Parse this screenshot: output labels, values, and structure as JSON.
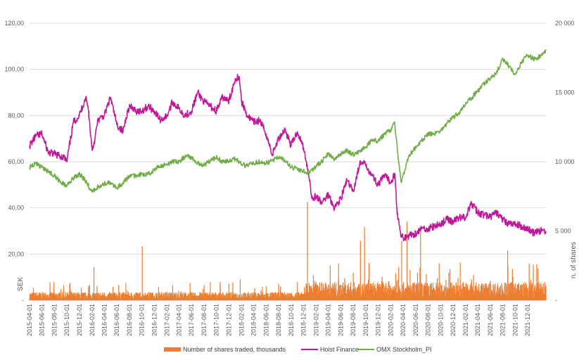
{
  "chart_data": {
    "type": "line",
    "title": "",
    "x_range": [
      "2015-04-01",
      "2022-02-28"
    ],
    "x_ticks": [
      "2015-04-01",
      "2015-06-01",
      "2015-08-01",
      "2015-10-01",
      "2015-12-01",
      "2016-02-01",
      "2016-04-01",
      "2016-06-01",
      "2016-08-01",
      "2016-10-01",
      "2016-12-01",
      "2017-02-01",
      "2017-04-01",
      "2017-06-01",
      "2017-08-01",
      "2017-10-01",
      "2017-12-01",
      "2018-02-01",
      "2018-04-01",
      "2018-06-01",
      "2018-08-01",
      "2018-10-01",
      "2018-12-01",
      "2019-02-01",
      "2019-04-01",
      "2019-06-01",
      "2019-08-01",
      "2019-10-01",
      "2019-12-01",
      "2020-02-01",
      "2020-04-01",
      "2020-06-01",
      "2020-08-01",
      "2020-10-01",
      "2020-12-01",
      "2021-02-01",
      "2021-04-01",
      "2021-06-01",
      "2021-08-01",
      "2021-10-01",
      "2021-12-01"
    ],
    "y_left": {
      "label": "SEK",
      "range": [
        0,
        120
      ],
      "ticks": [
        "-",
        "20,00",
        "40,00",
        "60,00",
        "80,00",
        "100,00",
        "120,00"
      ]
    },
    "y_right": {
      "label": "n. of shares",
      "range": [
        0,
        20000
      ],
      "ticks": [
        "-",
        "5 000",
        "10 000",
        "15 000",
        "20 000"
      ]
    },
    "gridlines": true,
    "legend": {
      "position": "bottom",
      "items": [
        {
          "name": "Number of shares traded, thousands",
          "color": "#ED7D31",
          "kind": "bar"
        },
        {
          "name": "Hoist Finance",
          "color": "#C0189A",
          "kind": "line"
        },
        {
          "name": "OMX Stockholm_PI",
          "color": "#70AD47",
          "kind": "line"
        }
      ]
    },
    "series": [
      {
        "name": "Hoist Finance",
        "axis": "left",
        "color": "#C0189A",
        "points": [
          [
            "2015-04-01",
            67
          ],
          [
            "2015-05-01",
            71
          ],
          [
            "2015-06-01",
            72
          ],
          [
            "2015-07-01",
            64
          ],
          [
            "2015-08-15",
            63
          ],
          [
            "2015-09-15",
            62
          ],
          [
            "2015-10-01",
            60
          ],
          [
            "2015-11-01",
            77
          ],
          [
            "2015-12-01",
            80
          ],
          [
            "2016-01-01",
            88
          ],
          [
            "2016-01-15",
            82
          ],
          [
            "2016-02-01",
            65
          ],
          [
            "2016-02-15",
            70
          ],
          [
            "2016-03-01",
            78
          ],
          [
            "2016-04-01",
            80
          ],
          [
            "2016-05-01",
            88
          ],
          [
            "2016-06-01",
            76
          ],
          [
            "2016-07-01",
            73
          ],
          [
            "2016-07-15",
            79
          ],
          [
            "2016-08-01",
            84
          ],
          [
            "2016-09-01",
            82
          ],
          [
            "2016-10-01",
            82
          ],
          [
            "2016-11-01",
            84
          ],
          [
            "2016-12-01",
            82
          ],
          [
            "2017-01-01",
            78
          ],
          [
            "2017-02-01",
            80
          ],
          [
            "2017-03-01",
            86
          ],
          [
            "2017-04-01",
            83
          ],
          [
            "2017-05-01",
            80
          ],
          [
            "2017-06-01",
            82
          ],
          [
            "2017-07-01",
            90
          ],
          [
            "2017-08-01",
            86
          ],
          [
            "2017-09-01",
            84
          ],
          [
            "2017-10-01",
            82
          ],
          [
            "2017-11-01",
            88
          ],
          [
            "2017-12-01",
            86
          ],
          [
            "2018-01-01",
            96
          ],
          [
            "2018-01-20",
            97
          ],
          [
            "2018-02-01",
            86
          ],
          [
            "2018-03-01",
            80
          ],
          [
            "2018-04-01",
            77
          ],
          [
            "2018-05-01",
            78
          ],
          [
            "2018-06-01",
            72
          ],
          [
            "2018-07-01",
            63
          ],
          [
            "2018-08-01",
            70
          ],
          [
            "2018-09-01",
            74
          ],
          [
            "2018-10-01",
            67
          ],
          [
            "2018-11-01",
            73
          ],
          [
            "2018-12-01",
            66
          ],
          [
            "2018-12-15",
            60
          ],
          [
            "2019-01-01",
            52
          ],
          [
            "2019-01-10",
            44
          ],
          [
            "2019-02-01",
            45
          ],
          [
            "2019-03-01",
            42
          ],
          [
            "2019-04-01",
            46
          ],
          [
            "2019-05-01",
            40
          ],
          [
            "2019-06-01",
            44
          ],
          [
            "2019-07-01",
            52
          ],
          [
            "2019-08-01",
            47
          ],
          [
            "2019-09-01",
            59
          ],
          [
            "2019-10-01",
            59
          ],
          [
            "2019-11-01",
            54
          ],
          [
            "2019-12-01",
            50
          ],
          [
            "2020-01-01",
            54
          ],
          [
            "2020-02-01",
            51
          ],
          [
            "2020-02-20",
            55
          ],
          [
            "2020-03-01",
            40
          ],
          [
            "2020-03-20",
            28
          ],
          [
            "2020-04-01",
            27
          ],
          [
            "2020-05-01",
            28
          ],
          [
            "2020-06-01",
            29
          ],
          [
            "2020-07-01",
            31
          ],
          [
            "2020-08-01",
            31
          ],
          [
            "2020-09-01",
            32
          ],
          [
            "2020-10-01",
            33
          ],
          [
            "2020-11-01",
            35
          ],
          [
            "2020-12-01",
            34
          ],
          [
            "2021-01-01",
            36
          ],
          [
            "2021-02-01",
            36
          ],
          [
            "2021-03-01",
            42
          ],
          [
            "2021-04-01",
            38
          ],
          [
            "2021-05-01",
            37
          ],
          [
            "2021-06-01",
            36
          ],
          [
            "2021-07-01",
            38
          ],
          [
            "2021-08-01",
            35
          ],
          [
            "2021-09-01",
            33
          ],
          [
            "2021-10-01",
            33
          ],
          [
            "2021-11-01",
            32
          ],
          [
            "2021-12-01",
            31
          ],
          [
            "2022-01-01",
            29
          ],
          [
            "2022-02-01",
            30
          ],
          [
            "2022-02-28",
            30
          ]
        ]
      },
      {
        "name": "OMX Stockholm_PI",
        "axis": "right",
        "color": "#70AD47",
        "points": [
          [
            "2015-04-01",
            9600
          ],
          [
            "2015-05-01",
            9900
          ],
          [
            "2015-06-01",
            9600
          ],
          [
            "2015-07-01",
            9300
          ],
          [
            "2015-08-01",
            9000
          ],
          [
            "2015-09-01",
            8500
          ],
          [
            "2015-10-01",
            8300
          ],
          [
            "2015-11-01",
            8800
          ],
          [
            "2015-12-01",
            9100
          ],
          [
            "2016-01-01",
            8600
          ],
          [
            "2016-02-01",
            7800
          ],
          [
            "2016-03-01",
            8200
          ],
          [
            "2016-04-01",
            8400
          ],
          [
            "2016-05-01",
            8500
          ],
          [
            "2016-06-01",
            8100
          ],
          [
            "2016-07-01",
            8500
          ],
          [
            "2016-08-01",
            8900
          ],
          [
            "2016-09-01",
            9000
          ],
          [
            "2016-10-01",
            9100
          ],
          [
            "2016-11-01",
            9100
          ],
          [
            "2016-12-01",
            9400
          ],
          [
            "2017-01-01",
            9700
          ],
          [
            "2017-02-01",
            9800
          ],
          [
            "2017-03-01",
            10000
          ],
          [
            "2017-04-01",
            10000
          ],
          [
            "2017-05-01",
            10400
          ],
          [
            "2017-06-01",
            10300
          ],
          [
            "2017-07-01",
            9900
          ],
          [
            "2017-08-01",
            9700
          ],
          [
            "2017-09-01",
            10100
          ],
          [
            "2017-10-01",
            10300
          ],
          [
            "2017-11-01",
            10000
          ],
          [
            "2017-12-01",
            10000
          ],
          [
            "2018-01-01",
            10200
          ],
          [
            "2018-02-01",
            9800
          ],
          [
            "2018-03-01",
            9700
          ],
          [
            "2018-04-01",
            9900
          ],
          [
            "2018-05-01",
            10000
          ],
          [
            "2018-06-01",
            9900
          ],
          [
            "2018-07-01",
            10100
          ],
          [
            "2018-08-01",
            10300
          ],
          [
            "2018-09-01",
            10100
          ],
          [
            "2018-10-01",
            9600
          ],
          [
            "2018-11-01",
            9500
          ],
          [
            "2018-12-01",
            9300
          ],
          [
            "2019-01-01",
            9200
          ],
          [
            "2019-02-01",
            9700
          ],
          [
            "2019-03-01",
            10000
          ],
          [
            "2019-04-01",
            10600
          ],
          [
            "2019-05-01",
            10200
          ],
          [
            "2019-06-01",
            10600
          ],
          [
            "2019-07-01",
            10800
          ],
          [
            "2019-08-01",
            10500
          ],
          [
            "2019-09-01",
            10800
          ],
          [
            "2019-10-01",
            11000
          ],
          [
            "2019-11-01",
            11600
          ],
          [
            "2019-12-01",
            11500
          ],
          [
            "2020-01-01",
            12000
          ],
          [
            "2020-02-01",
            12300
          ],
          [
            "2020-02-20",
            12800
          ],
          [
            "2020-03-10",
            10000
          ],
          [
            "2020-03-23",
            8500
          ],
          [
            "2020-04-15",
            9800
          ],
          [
            "2020-05-01",
            10500
          ],
          [
            "2020-06-01",
            11000
          ],
          [
            "2020-07-01",
            11500
          ],
          [
            "2020-08-01",
            12000
          ],
          [
            "2020-09-01",
            12000
          ],
          [
            "2020-10-01",
            12200
          ],
          [
            "2020-11-01",
            12800
          ],
          [
            "2020-12-01",
            13200
          ],
          [
            "2021-01-01",
            13500
          ],
          [
            "2021-02-01",
            14200
          ],
          [
            "2021-03-01",
            14600
          ],
          [
            "2021-04-01",
            15100
          ],
          [
            "2021-05-01",
            15600
          ],
          [
            "2021-06-01",
            16000
          ],
          [
            "2021-07-01",
            16400
          ],
          [
            "2021-08-01",
            17400
          ],
          [
            "2021-09-01",
            16900
          ],
          [
            "2021-10-01",
            16300
          ],
          [
            "2021-11-01",
            17200
          ],
          [
            "2021-12-01",
            17700
          ],
          [
            "2022-01-01",
            17400
          ],
          [
            "2022-02-01",
            17600
          ],
          [
            "2022-02-28",
            18000
          ]
        ]
      },
      {
        "name": "Number of shares traded, thousands",
        "axis": "right",
        "color": "#ED7D31",
        "type": "bar",
        "baseline": 350,
        "spikes": [
          [
            "2015-04-20",
            900
          ],
          [
            "2015-07-10",
            1300
          ],
          [
            "2015-09-01",
            800
          ],
          [
            "2015-10-20",
            700
          ],
          [
            "2015-12-10",
            900
          ],
          [
            "2016-01-20",
            1100
          ],
          [
            "2016-02-10",
            2400
          ],
          [
            "2016-06-10",
            1100
          ],
          [
            "2016-09-10",
            1300
          ],
          [
            "2016-10-03",
            3900
          ],
          [
            "2017-03-01",
            1100
          ],
          [
            "2017-09-01",
            1300
          ],
          [
            "2017-10-20",
            1100
          ],
          [
            "2017-12-01",
            1200
          ],
          [
            "2018-01-25",
            1500
          ],
          [
            "2018-06-01",
            1000
          ],
          [
            "2018-08-01",
            1200
          ],
          [
            "2018-11-01",
            1300
          ],
          [
            "2018-12-20",
            7100
          ],
          [
            "2019-01-25",
            1400
          ],
          [
            "2019-02-10",
            2800
          ],
          [
            "2019-03-01",
            1300
          ],
          [
            "2019-04-10",
            2500
          ],
          [
            "2019-05-01",
            1300
          ],
          [
            "2019-05-25",
            2000
          ],
          [
            "2019-06-20",
            1600
          ],
          [
            "2019-08-01",
            2000
          ],
          [
            "2019-09-05",
            4300
          ],
          [
            "2019-09-25",
            5300
          ],
          [
            "2019-10-20",
            2000
          ],
          [
            "2019-11-10",
            5300
          ],
          [
            "2019-12-20",
            1700
          ],
          [
            "2020-01-20",
            1400
          ],
          [
            "2020-03-10",
            2400
          ],
          [
            "2020-03-25",
            4300
          ],
          [
            "2020-04-20",
            5700
          ],
          [
            "2020-05-05",
            2200
          ],
          [
            "2020-06-10",
            2000
          ],
          [
            "2020-06-25",
            5200
          ],
          [
            "2020-08-01",
            1600
          ],
          [
            "2020-09-15",
            1600
          ],
          [
            "2020-11-10",
            2000
          ],
          [
            "2021-01-20",
            1300
          ],
          [
            "2021-03-01",
            1500
          ],
          [
            "2021-06-01",
            1400
          ],
          [
            "2021-08-25",
            3600
          ],
          [
            "2021-10-01",
            1200
          ],
          [
            "2022-01-01",
            1000
          ],
          [
            "2022-01-20",
            2300
          ],
          [
            "2022-02-20",
            2400
          ]
        ]
      }
    ]
  }
}
